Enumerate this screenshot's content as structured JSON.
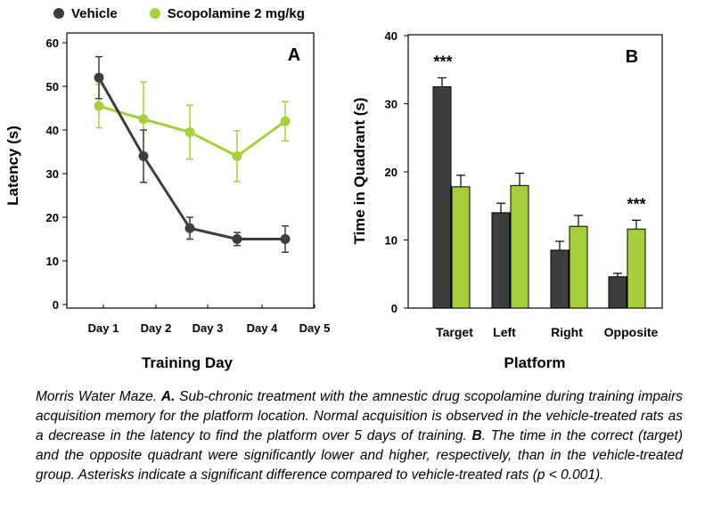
{
  "legend": {
    "series1": "Vehicle",
    "series2": "Scopolamine 2 mg/kg"
  },
  "colors": {
    "vehicle": "#3d3d3d",
    "scopolamine": "#a6cf3a"
  },
  "chart_data": [
    {
      "type": "line",
      "panel_label": "A",
      "xlabel": "Training Day",
      "ylabel": "Latency (s)",
      "ylim": [
        0,
        60
      ],
      "yticks": [
        0,
        10,
        20,
        30,
        40,
        50,
        60
      ],
      "categories": [
        "Day  1",
        "Day 2",
        "Day 3",
        "Day 4",
        "Day 5"
      ],
      "grid": false,
      "series": [
        {
          "name": "Vehicle",
          "values": [
            52,
            34,
            17.5,
            15,
            15
          ],
          "errors": [
            4.8,
            6,
            2.5,
            1.5,
            3
          ]
        },
        {
          "name": "Scopolamine 2 mg/kg",
          "values": [
            45.5,
            42.5,
            39.5,
            34,
            42
          ],
          "errors": [
            5,
            8.5,
            6.2,
            5.8,
            4.5
          ]
        }
      ]
    },
    {
      "type": "bar",
      "panel_label": "B",
      "xlabel": "Platform",
      "ylabel": "Time in Quadrant (s)",
      "ylim": [
        0,
        40
      ],
      "yticks": [
        0,
        10,
        20,
        30,
        40
      ],
      "categories": [
        "Target",
        "Left",
        "Right",
        "Opposite"
      ],
      "grid": false,
      "series": [
        {
          "name": "Vehicle",
          "values": [
            32.5,
            14,
            8.5,
            4.6
          ],
          "errors": [
            1.3,
            1.4,
            1.3,
            0.5
          ]
        },
        {
          "name": "Scopolamine 2 mg/kg",
          "values": [
            17.8,
            18,
            12,
            11.6
          ],
          "errors": [
            1.7,
            1.8,
            1.6,
            1.3
          ]
        }
      ],
      "annotations": [
        {
          "category": "Target",
          "text": "***"
        },
        {
          "category": "Opposite",
          "text": "***"
        }
      ]
    }
  ],
  "caption": {
    "lead": "Morris Water Maze. ",
    "a_label": "A.",
    "a_text": " Sub-chronic treatment with the amnestic drug scopolamine during training impairs acquisition memory for the platform location. Normal acquisition is observed in the vehicle-treated rats as a decrease in the latency to find the platform over 5 days of training. ",
    "b_label": "B",
    "b_text": ". The time in the correct (target) and the opposite quadrant were significantly lower and higher, respectively, than in the vehicle-treated group. Asterisks indicate a significant difference compared to vehicle-treated rats (p < 0.001)."
  }
}
